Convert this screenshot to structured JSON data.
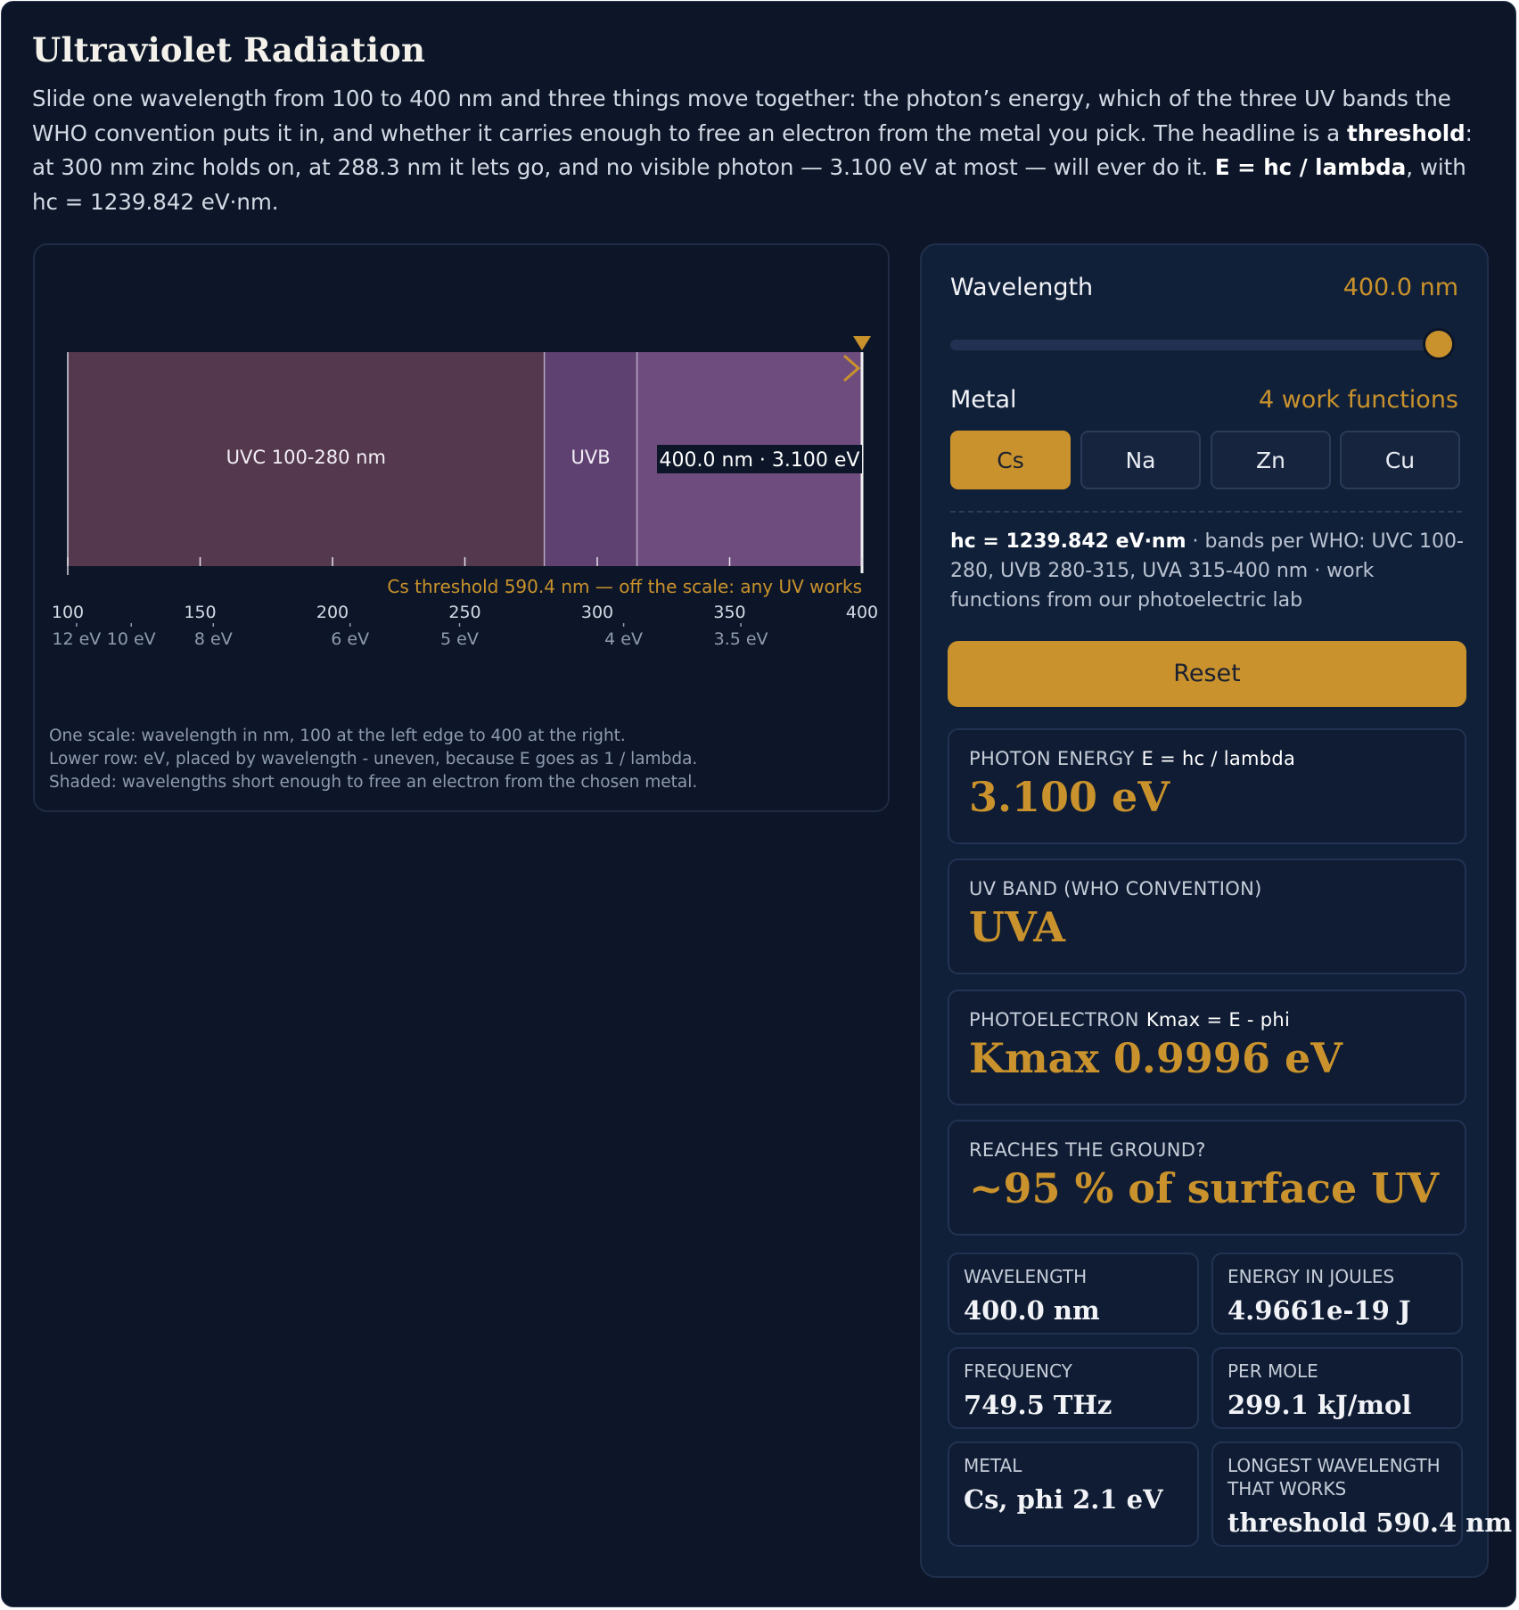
{
  "title": "Ultraviolet Radiation",
  "intro": {
    "p1": "Slide one wavelength from 100 to 400 nm and three things move together: the photon’s energy, which of the three UV bands the WHO convention puts it in, and whether it carries enough to free an electron from the metal you pick. The headline is a ",
    "b1": "threshold",
    "p2": ": at 300 nm zinc holds on, at 288.3 nm it lets go, and no visible photon — 3.100 eV at most — will ever do it. ",
    "b2": "E = hc / lambda",
    "p3": ", with hc = 1239.842 eV·nm."
  },
  "chart": {
    "bands": [
      {
        "label": "UVC 100-280 nm",
        "from": 100,
        "to": 280,
        "color": "#54394e"
      },
      {
        "label": "UVB",
        "from": 280,
        "to": 315,
        "color": "#5e4170"
      },
      {
        "label": "",
        "from": 315,
        "to": 400,
        "color": "#6e4d7e"
      }
    ],
    "marker_label": "400.0 nm · 3.100 eV",
    "threshold_note": "Cs threshold 590.4 nm — off the scale: any UV works",
    "nm_ticks": [
      "100",
      "150",
      "200",
      "250",
      "300",
      "350",
      "400"
    ],
    "ev_ticks": [
      {
        "ev": 12,
        "label": "12 eV"
      },
      {
        "ev": 10,
        "label": "10 eV"
      },
      {
        "ev": 8,
        "label": "8 eV"
      },
      {
        "ev": 6,
        "label": "6 eV"
      },
      {
        "ev": 5,
        "label": "5 eV"
      },
      {
        "ev": 4,
        "label": "4 eV"
      },
      {
        "ev": 3.5,
        "label": "3.5 eV"
      }
    ],
    "notes": [
      "One scale: wavelength in nm, 100 at the left edge to 400 at the right.",
      "Lower row: eV, placed by wavelength - uneven, because E goes as 1 / lambda.",
      "Shaded: wavelengths short enough to free an electron from the chosen metal."
    ]
  },
  "chart_data": {
    "type": "bar",
    "xlabel": "",
    "xlim": [
      100,
      400
    ],
    "categories": [
      "UVC 100-280 nm",
      "UVB",
      ""
    ],
    "ranges": [
      [
        100,
        280
      ],
      [
        280,
        315
      ],
      [
        315,
        400
      ]
    ],
    "selected_wavelength_nm": 400.0,
    "selected_energy_ev": 3.1
  },
  "controls": {
    "wavelength_label": "Wavelength",
    "wavelength_value": "400.0 nm",
    "slider_min": 100,
    "slider_max": 400,
    "slider_value": 400,
    "metal_label": "Metal",
    "metal_count": "4 work functions",
    "metals": [
      "Cs",
      "Na",
      "Zn",
      "Cu"
    ],
    "active_metal": "Cs",
    "source_bold": "hc = 1239.842 eV·nm",
    "source_rest": " · bands per WHO: UVC 100-280, UVB 280-315, UVA 315-400 nm · work functions from our photoelectric lab",
    "reset_label": "Reset"
  },
  "results": {
    "energy_label": "PHOTON ENERGY",
    "energy_formula": "E = hc / lambda",
    "energy_value": "3.100 eV",
    "band_label": "UV BAND (WHO CONVENTION)",
    "band_value": "UVA",
    "photo_label": "PHOTOELECTRON",
    "photo_formula": "Kmax = E - phi",
    "photo_value": "Kmax 0.9996 eV",
    "ground_label": "REACHES THE GROUND?",
    "ground_value": "~95 % of surface UV"
  },
  "stats": {
    "wavelength_label": "WAVELENGTH",
    "wavelength_value": "400.0 nm",
    "joules_label": "ENERGY IN JOULES",
    "joules_value": "4.9661e-19 J",
    "freq_label": "FREQUENCY",
    "freq_value": "749.5 THz",
    "mole_label": "PER MOLE",
    "mole_value": "299.1 kJ/mol",
    "metal_label": "METAL",
    "metal_value": "Cs, phi 2.1 eV",
    "longest_label": "LONGEST WAVELENGTH THAT WORKS",
    "longest_value": "threshold 590.4 nm"
  },
  "colors": {
    "accent": "#c9922c",
    "background": "#0c1628",
    "panel": "#112039"
  }
}
